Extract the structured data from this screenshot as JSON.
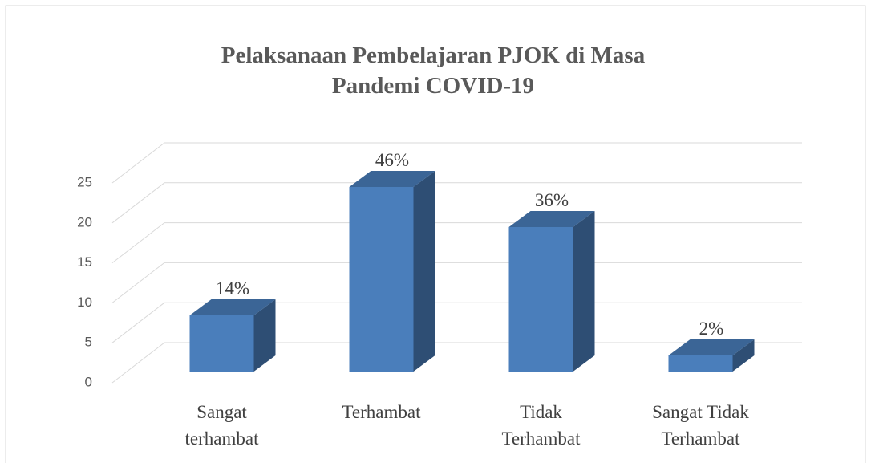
{
  "chart_data": {
    "type": "bar3d",
    "title": "Pelaksanaan Pembelajaran  PJOK di Masa Pandemi COVID-19",
    "categories": [
      "Sangat terhambat",
      "Terhambat",
      "Tidak Terhambat",
      "Sangat Tidak Terhambat"
    ],
    "values": [
      7,
      23,
      18,
      2
    ],
    "value_labels": [
      "14%",
      "46%",
      "36%",
      "2%"
    ],
    "color": "#4a7ebb",
    "ylim": [
      0,
      25
    ],
    "yticks": [
      0,
      5,
      10,
      15,
      20,
      25
    ],
    "grid": true
  }
}
